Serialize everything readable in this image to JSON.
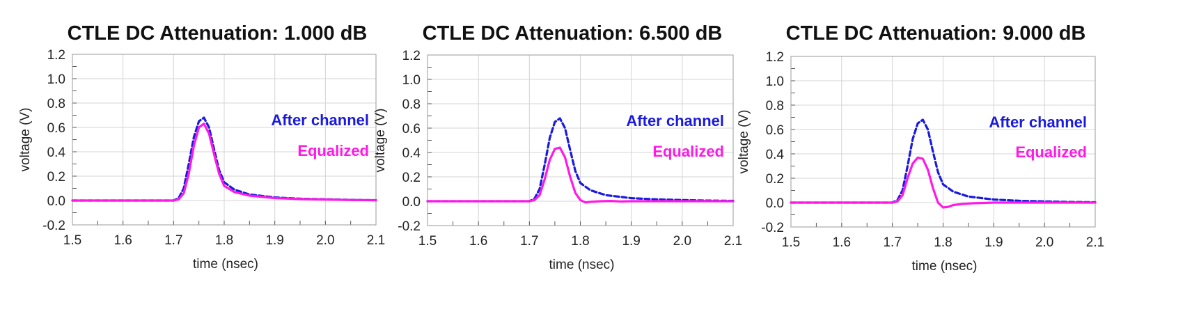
{
  "chart_data": [
    {
      "type": "line",
      "title": "CTLE DC Attenuation: 1.000 dB",
      "xlabel": "time (nsec)",
      "ylabel": "voltage (V)",
      "xlim": [
        1.5,
        2.1
      ],
      "ylim": [
        -0.2,
        1.2
      ],
      "xticks": [
        "1.5",
        "1.6",
        "1.7",
        "1.8",
        "1.9",
        "2.0",
        "2.1"
      ],
      "yticks": [
        "-0.2",
        "0.0",
        "0.2",
        "0.4",
        "0.6",
        "0.8",
        "1.0",
        "1.2"
      ],
      "grid": true,
      "series": [
        {
          "name": "After channel",
          "color": "#1a1adf",
          "style": "dashed",
          "x": [
            1.5,
            1.7,
            1.71,
            1.72,
            1.73,
            1.74,
            1.75,
            1.76,
            1.77,
            1.78,
            1.79,
            1.8,
            1.82,
            1.85,
            1.9,
            1.95,
            2.0,
            2.05,
            2.1
          ],
          "y": [
            0.0,
            0.0,
            0.02,
            0.1,
            0.3,
            0.52,
            0.65,
            0.68,
            0.6,
            0.42,
            0.25,
            0.15,
            0.09,
            0.05,
            0.025,
            0.015,
            0.01,
            0.005,
            0.003
          ]
        },
        {
          "name": "Equalized",
          "color": "#ff19e6",
          "style": "solid",
          "x": [
            1.5,
            1.7,
            1.71,
            1.72,
            1.73,
            1.74,
            1.75,
            1.76,
            1.77,
            1.78,
            1.79,
            1.8,
            1.82,
            1.85,
            1.9,
            1.95,
            2.0,
            2.05,
            2.1
          ],
          "y": [
            0.0,
            0.0,
            0.01,
            0.06,
            0.22,
            0.45,
            0.6,
            0.63,
            0.55,
            0.38,
            0.22,
            0.12,
            0.07,
            0.04,
            0.02,
            0.012,
            0.008,
            0.004,
            0.002
          ]
        }
      ]
    },
    {
      "type": "line",
      "title": "CTLE DC Attenuation: 6.500 dB",
      "xlabel": "time (nsec)",
      "ylabel": "voltage (V)",
      "xlim": [
        1.5,
        2.1
      ],
      "ylim": [
        -0.2,
        1.2
      ],
      "xticks": [
        "1.5",
        "1.6",
        "1.7",
        "1.8",
        "1.9",
        "2.0",
        "2.1"
      ],
      "yticks": [
        "-0.2",
        "0.0",
        "0.2",
        "0.4",
        "0.6",
        "0.8",
        "1.0",
        "1.2"
      ],
      "grid": true,
      "series": [
        {
          "name": "After channel",
          "color": "#1a1adf",
          "style": "dashed",
          "x": [
            1.5,
            1.7,
            1.71,
            1.72,
            1.73,
            1.74,
            1.75,
            1.76,
            1.77,
            1.78,
            1.79,
            1.8,
            1.82,
            1.85,
            1.9,
            1.95,
            2.0,
            2.05,
            2.1
          ],
          "y": [
            0.0,
            0.0,
            0.02,
            0.1,
            0.3,
            0.52,
            0.65,
            0.68,
            0.6,
            0.42,
            0.25,
            0.15,
            0.09,
            0.05,
            0.025,
            0.015,
            0.01,
            0.005,
            0.003
          ]
        },
        {
          "name": "Equalized",
          "color": "#ff19e6",
          "style": "solid",
          "x": [
            1.5,
            1.7,
            1.71,
            1.72,
            1.73,
            1.74,
            1.75,
            1.76,
            1.77,
            1.78,
            1.79,
            1.8,
            1.81,
            1.82,
            1.84,
            1.86,
            1.88,
            1.9,
            2.0,
            2.1
          ],
          "y": [
            0.0,
            0.0,
            0.01,
            0.05,
            0.18,
            0.34,
            0.43,
            0.44,
            0.36,
            0.2,
            0.07,
            0.01,
            -0.01,
            -0.005,
            0.0,
            0.002,
            -0.002,
            0.0,
            0.0,
            0.0
          ]
        }
      ]
    },
    {
      "type": "line",
      "title": "CTLE DC Attenuation: 9.000 dB",
      "xlabel": "time (nsec)",
      "ylabel": "voltage (V)",
      "xlim": [
        1.5,
        2.1
      ],
      "ylim": [
        -0.2,
        1.2
      ],
      "xticks": [
        "1.5",
        "1.6",
        "1.7",
        "1.8",
        "1.9",
        "2.0",
        "2.1"
      ],
      "yticks": [
        "-0.2",
        "0.0",
        "0.2",
        "0.4",
        "0.6",
        "0.8",
        "1.0",
        "1.2"
      ],
      "grid": true,
      "series": [
        {
          "name": "After channel",
          "color": "#1a1adf",
          "style": "dashed",
          "x": [
            1.5,
            1.7,
            1.71,
            1.72,
            1.73,
            1.74,
            1.75,
            1.76,
            1.77,
            1.78,
            1.79,
            1.8,
            1.82,
            1.85,
            1.9,
            1.95,
            2.0,
            2.05,
            2.1
          ],
          "y": [
            0.0,
            0.0,
            0.02,
            0.1,
            0.3,
            0.52,
            0.65,
            0.68,
            0.6,
            0.42,
            0.25,
            0.15,
            0.09,
            0.05,
            0.025,
            0.015,
            0.01,
            0.005,
            0.003
          ]
        },
        {
          "name": "Equalized",
          "color": "#ff19e6",
          "style": "solid",
          "x": [
            1.5,
            1.7,
            1.71,
            1.72,
            1.73,
            1.74,
            1.75,
            1.76,
            1.77,
            1.78,
            1.79,
            1.8,
            1.81,
            1.82,
            1.84,
            1.86,
            1.88,
            1.9,
            2.0,
            2.1
          ],
          "y": [
            0.0,
            0.0,
            0.01,
            0.06,
            0.2,
            0.32,
            0.37,
            0.36,
            0.27,
            0.12,
            0.0,
            -0.04,
            -0.035,
            -0.02,
            -0.01,
            -0.005,
            -0.003,
            0.0,
            0.0,
            0.0
          ]
        }
      ]
    }
  ]
}
